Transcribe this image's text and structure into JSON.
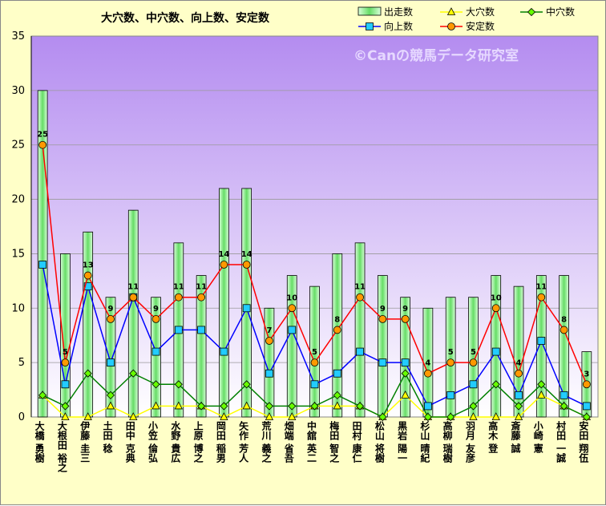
{
  "chart_data": {
    "type": "bar",
    "title": "大穴数、中穴数、向上数、安定数",
    "watermark": "©Canの競馬データ研究室",
    "ylim": [
      0,
      35
    ],
    "yticks": [
      "0",
      "5",
      "10",
      "15",
      "20",
      "25",
      "30",
      "35"
    ],
    "categories": [
      "大橋 勇樹",
      "大根田 裕之",
      "伊藤 圭三",
      "土田 稔",
      "田中 克典",
      "小笠 倫弘",
      "水野 貴広",
      "上原 博之",
      "岡田 稲男",
      "矢作 芳人",
      "荒川 義之",
      "畑端 省吾",
      "中舘 英二",
      "梅田 智之",
      "田村 康仁",
      "松山 将樹",
      "黒岩 陽一",
      "杉山 晴紀",
      "高柳 瑞樹",
      "羽月 友彦",
      "高木 登",
      "斎藤 誠",
      "小崎 憲",
      "村田 一誠",
      "安田 翔伍"
    ],
    "series": [
      {
        "name": "出走数",
        "kind": "bar",
        "color": "#b4f0b4",
        "values": [
          30,
          15,
          17,
          11,
          19,
          11,
          16,
          13,
          21,
          21,
          10,
          13,
          12,
          15,
          16,
          13,
          11,
          10,
          11,
          11,
          13,
          12,
          13,
          13,
          6
        ]
      },
      {
        "name": "大穴数",
        "kind": "line",
        "marker": "triangle",
        "color": "#ffff00",
        "values": [
          2,
          0,
          0,
          1,
          0,
          1,
          1,
          1,
          0,
          1,
          0,
          0,
          1,
          1,
          1,
          0,
          2,
          0,
          0,
          0,
          0,
          0,
          2,
          1,
          0
        ]
      },
      {
        "name": "中穴数",
        "kind": "line",
        "marker": "diamond",
        "color": "#008000",
        "values": [
          2,
          1,
          4,
          2,
          4,
          3,
          3,
          1,
          1,
          3,
          1,
          1,
          1,
          2,
          1,
          0,
          4,
          0,
          0,
          1,
          3,
          1,
          3,
          1,
          0
        ]
      },
      {
        "name": "向上数",
        "kind": "line",
        "marker": "square",
        "color": "#0000ff",
        "values": [
          14,
          3,
          12,
          5,
          11,
          6,
          8,
          8,
          6,
          10,
          4,
          8,
          3,
          4,
          6,
          5,
          5,
          1,
          2,
          3,
          6,
          2,
          7,
          2,
          1
        ]
      },
      {
        "name": "安定数",
        "kind": "line",
        "marker": "circle",
        "color": "#ff0000",
        "values": [
          25,
          5,
          13,
          9,
          11,
          9,
          11,
          11,
          14,
          14,
          7,
          10,
          5,
          8,
          11,
          9,
          9,
          4,
          5,
          5,
          10,
          4,
          11,
          8,
          3
        ]
      }
    ],
    "data_labels": [
      "25",
      "5",
      "13",
      "9",
      "11",
      "9",
      "11",
      "11",
      "14",
      "14",
      "7",
      "10",
      "5",
      "8",
      "11",
      "9",
      "9",
      "4",
      "5",
      "5",
      "10",
      "4",
      "11",
      "8",
      "3"
    ],
    "legend_position": "top-right",
    "colors": {
      "background": "#ffffc8",
      "plot_top": "#b48cf0",
      "plot_bottom": "#ffffff",
      "bar_edge": "#000000"
    }
  }
}
